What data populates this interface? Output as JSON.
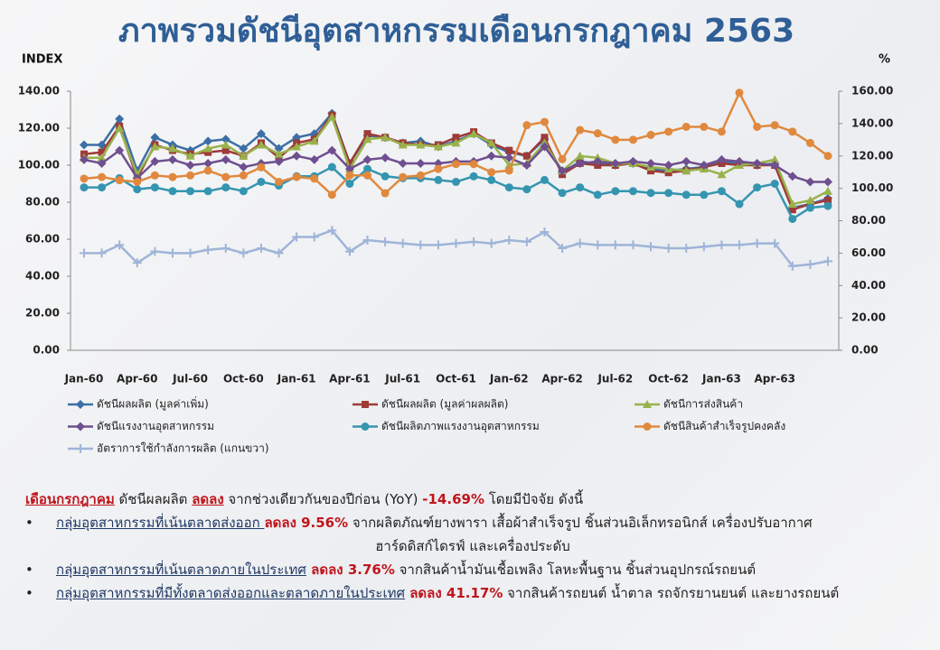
{
  "chart_data": {
    "type": "line",
    "title": "ภาพรวมดัชนีอุตสาหกรรมเดือนกรกฎาคม  2563",
    "y_label": "INDEX",
    "y2_label": "%",
    "categories": [
      "Jan-60",
      null,
      null,
      "Apr-60",
      null,
      null,
      "Jul-60",
      null,
      null,
      "Oct-60",
      null,
      null,
      "Jan-61",
      null,
      null,
      "Apr-61",
      null,
      null,
      "Jul-61",
      null,
      null,
      "Oct-61",
      null,
      null,
      "Jan-62",
      null,
      null,
      "Apr-62",
      null,
      null,
      "Jul-62",
      null,
      null,
      "Oct-62",
      null,
      null,
      "Jan-63",
      null,
      null,
      "Apr-63",
      null,
      null,
      null
    ],
    "ylim": [
      0,
      140
    ],
    "yticks": [
      {
        "value": 0,
        "label": "0.00"
      },
      {
        "value": 20,
        "label": "20.00"
      },
      {
        "value": 40,
        "label": "40.00"
      },
      {
        "value": 60,
        "label": "60.00"
      },
      {
        "value": 80,
        "label": "80.00"
      },
      {
        "value": 100,
        "label": "100.00"
      },
      {
        "value": 120,
        "label": "120.00"
      },
      {
        "value": 140,
        "label": "140.00"
      }
    ],
    "y2lim": [
      0,
      160
    ],
    "y2ticks": [
      {
        "value": 0,
        "label": "0.00"
      },
      {
        "value": 20,
        "label": "20.00"
      },
      {
        "value": 40,
        "label": "40.00"
      },
      {
        "value": 60,
        "label": "60.00"
      },
      {
        "value": 80,
        "label": "80.00"
      },
      {
        "value": 100,
        "label": "100.00"
      },
      {
        "value": 120,
        "label": "120.00"
      },
      {
        "value": 140,
        "label": "140.00"
      },
      {
        "value": 160,
        "label": "160.00"
      }
    ],
    "grid": false,
    "series": [
      {
        "name": "ดัชนีผลผลิต (มูลค่าเพิ่ม)",
        "color": "#3c6fa5",
        "marker": "diamond",
        "values": [
          111,
          111,
          125,
          97,
          115,
          111,
          108,
          113,
          114,
          109,
          117,
          109,
          115,
          117,
          128,
          101,
          116,
          115,
          112,
          113,
          110,
          113,
          117,
          111,
          107,
          105,
          114,
          96,
          102,
          101,
          100,
          101,
          98,
          97,
          98,
          99,
          102,
          101,
          100,
          101,
          77,
          79,
          82
        ]
      },
      {
        "name": "ดัชนีผลผลิต (มูลค่าผลผลิต)",
        "color": "#9e3a38",
        "marker": "square",
        "values": [
          106,
          107,
          121,
          93,
          111,
          108,
          106,
          107,
          108,
          105,
          112,
          104,
          112,
          114,
          127,
          101,
          117,
          115,
          112,
          111,
          111,
          115,
          118,
          112,
          108,
          105,
          115,
          95,
          101,
          100,
          100,
          101,
          97,
          96,
          97,
          99,
          101,
          100,
          100,
          100,
          76,
          79,
          81
        ]
      },
      {
        "name": "ดัชนีการส่งสินค้า",
        "color": "#98b24b",
        "marker": "triangle",
        "values": [
          104,
          104,
          120,
          95,
          110,
          109,
          105,
          109,
          111,
          105,
          111,
          106,
          110,
          113,
          126,
          98,
          114,
          115,
          111,
          111,
          110,
          112,
          117,
          112,
          100,
          101,
          112,
          97,
          105,
          104,
          101,
          101,
          99,
          98,
          97,
          98,
          95,
          100,
          101,
          103,
          79,
          81,
          86
        ]
      },
      {
        "name": "ดัชนีแรงงานอุตสาหกรรม",
        "color": "#6f4f8f",
        "marker": "diamond",
        "values": [
          103,
          101,
          108,
          93,
          102,
          103,
          100,
          101,
          103,
          99,
          101,
          102,
          105,
          103,
          108,
          98,
          103,
          104,
          101,
          101,
          101,
          102,
          102,
          105,
          104,
          100,
          110,
          97,
          101,
          102,
          101,
          102,
          101,
          100,
          102,
          100,
          103,
          102,
          101,
          100,
          94,
          91,
          91
        ]
      },
      {
        "name": "ดัชนีผลิตภาพแรงงานอุตสาหกรรม",
        "color": "#3595b0",
        "marker": "circle",
        "values": [
          88,
          88,
          93,
          87,
          88,
          86,
          86,
          86,
          88,
          86,
          91,
          89,
          94,
          94,
          99,
          90,
          98,
          94,
          93,
          93,
          92,
          91,
          94,
          92,
          88,
          87,
          92,
          85,
          88,
          84,
          86,
          86,
          85,
          85,
          84,
          84,
          86,
          79,
          88,
          90,
          71,
          77,
          78
        ]
      },
      {
        "name": "ดัชนีสินค้าสำเร็จรูปคงคลัง",
        "color": "#e0893e",
        "marker": "circle",
        "axis": "y2",
        "values": [
          106,
          107,
          105,
          104,
          108,
          107,
          108,
          111,
          107,
          108,
          113,
          104,
          107,
          106,
          96,
          108,
          108,
          97,
          107,
          108,
          112,
          115,
          115,
          110,
          111,
          139,
          141,
          118,
          136,
          134,
          130,
          130,
          133,
          135,
          138,
          138,
          135,
          159,
          138,
          139,
          135,
          128,
          120
        ]
      },
      {
        "name": "อัตราการใช้กำลังการผลิต (แกนขวา)",
        "color": "#9fb4d8",
        "marker": "plus",
        "axis": "y2",
        "values": [
          60,
          60,
          65,
          54,
          61,
          60,
          60,
          62,
          63,
          60,
          63,
          60,
          70,
          70,
          74,
          61,
          68,
          67,
          66,
          65,
          65,
          66,
          67,
          66,
          68,
          67,
          73,
          63,
          66,
          65,
          65,
          65,
          64,
          63,
          63,
          64,
          65,
          65,
          66,
          66,
          52,
          53,
          55
        ]
      }
    ]
  },
  "summary": {
    "intro": [
      "เดือนกรกฎาคม",
      " ดัชนีผลผลิต ",
      "ลดลง",
      " จากช่วงเดียวกันของปีก่อน (YoY) ",
      "-14.69%",
      " โดยมีปัจจัย ดังนี้"
    ],
    "bullet_mark": "•",
    "bullets": [
      [
        "กลุ่มอุตสาหกรรมที่เน้นตลาดส่งออก ",
        "ลดลง 9.56%",
        " จากผลิตภัณฑ์ยางพารา เสื้อผ้าสำเร็จรูป ชิ้นส่วนอิเล็กทรอนิกส์ เครื่องปรับอากาศ",
        "ฮาร์ดดิสก์ไดรฟ์ และเครื่องประดับ"
      ],
      [
        "กลุ่มอุตสาหกรรมที่เน้นตลาดภายในประเทศ",
        " ลดลง 3.76%",
        " จากสินค้าน้ำมันเชื้อเพลิง โลหะพื้นฐาน ชิ้นส่วนอุปกรณ์รถยนต์"
      ],
      [
        "กลุ่มอุตสาหกรรมที่มีทั้งตลาดส่งออกและตลาดภายในประเทศ",
        " ลดลง 41.17%",
        " จากสินค้ารถยนต์ น้ำตาล รถจักรยานยนต์ และยางรถยนต์"
      ]
    ]
  }
}
